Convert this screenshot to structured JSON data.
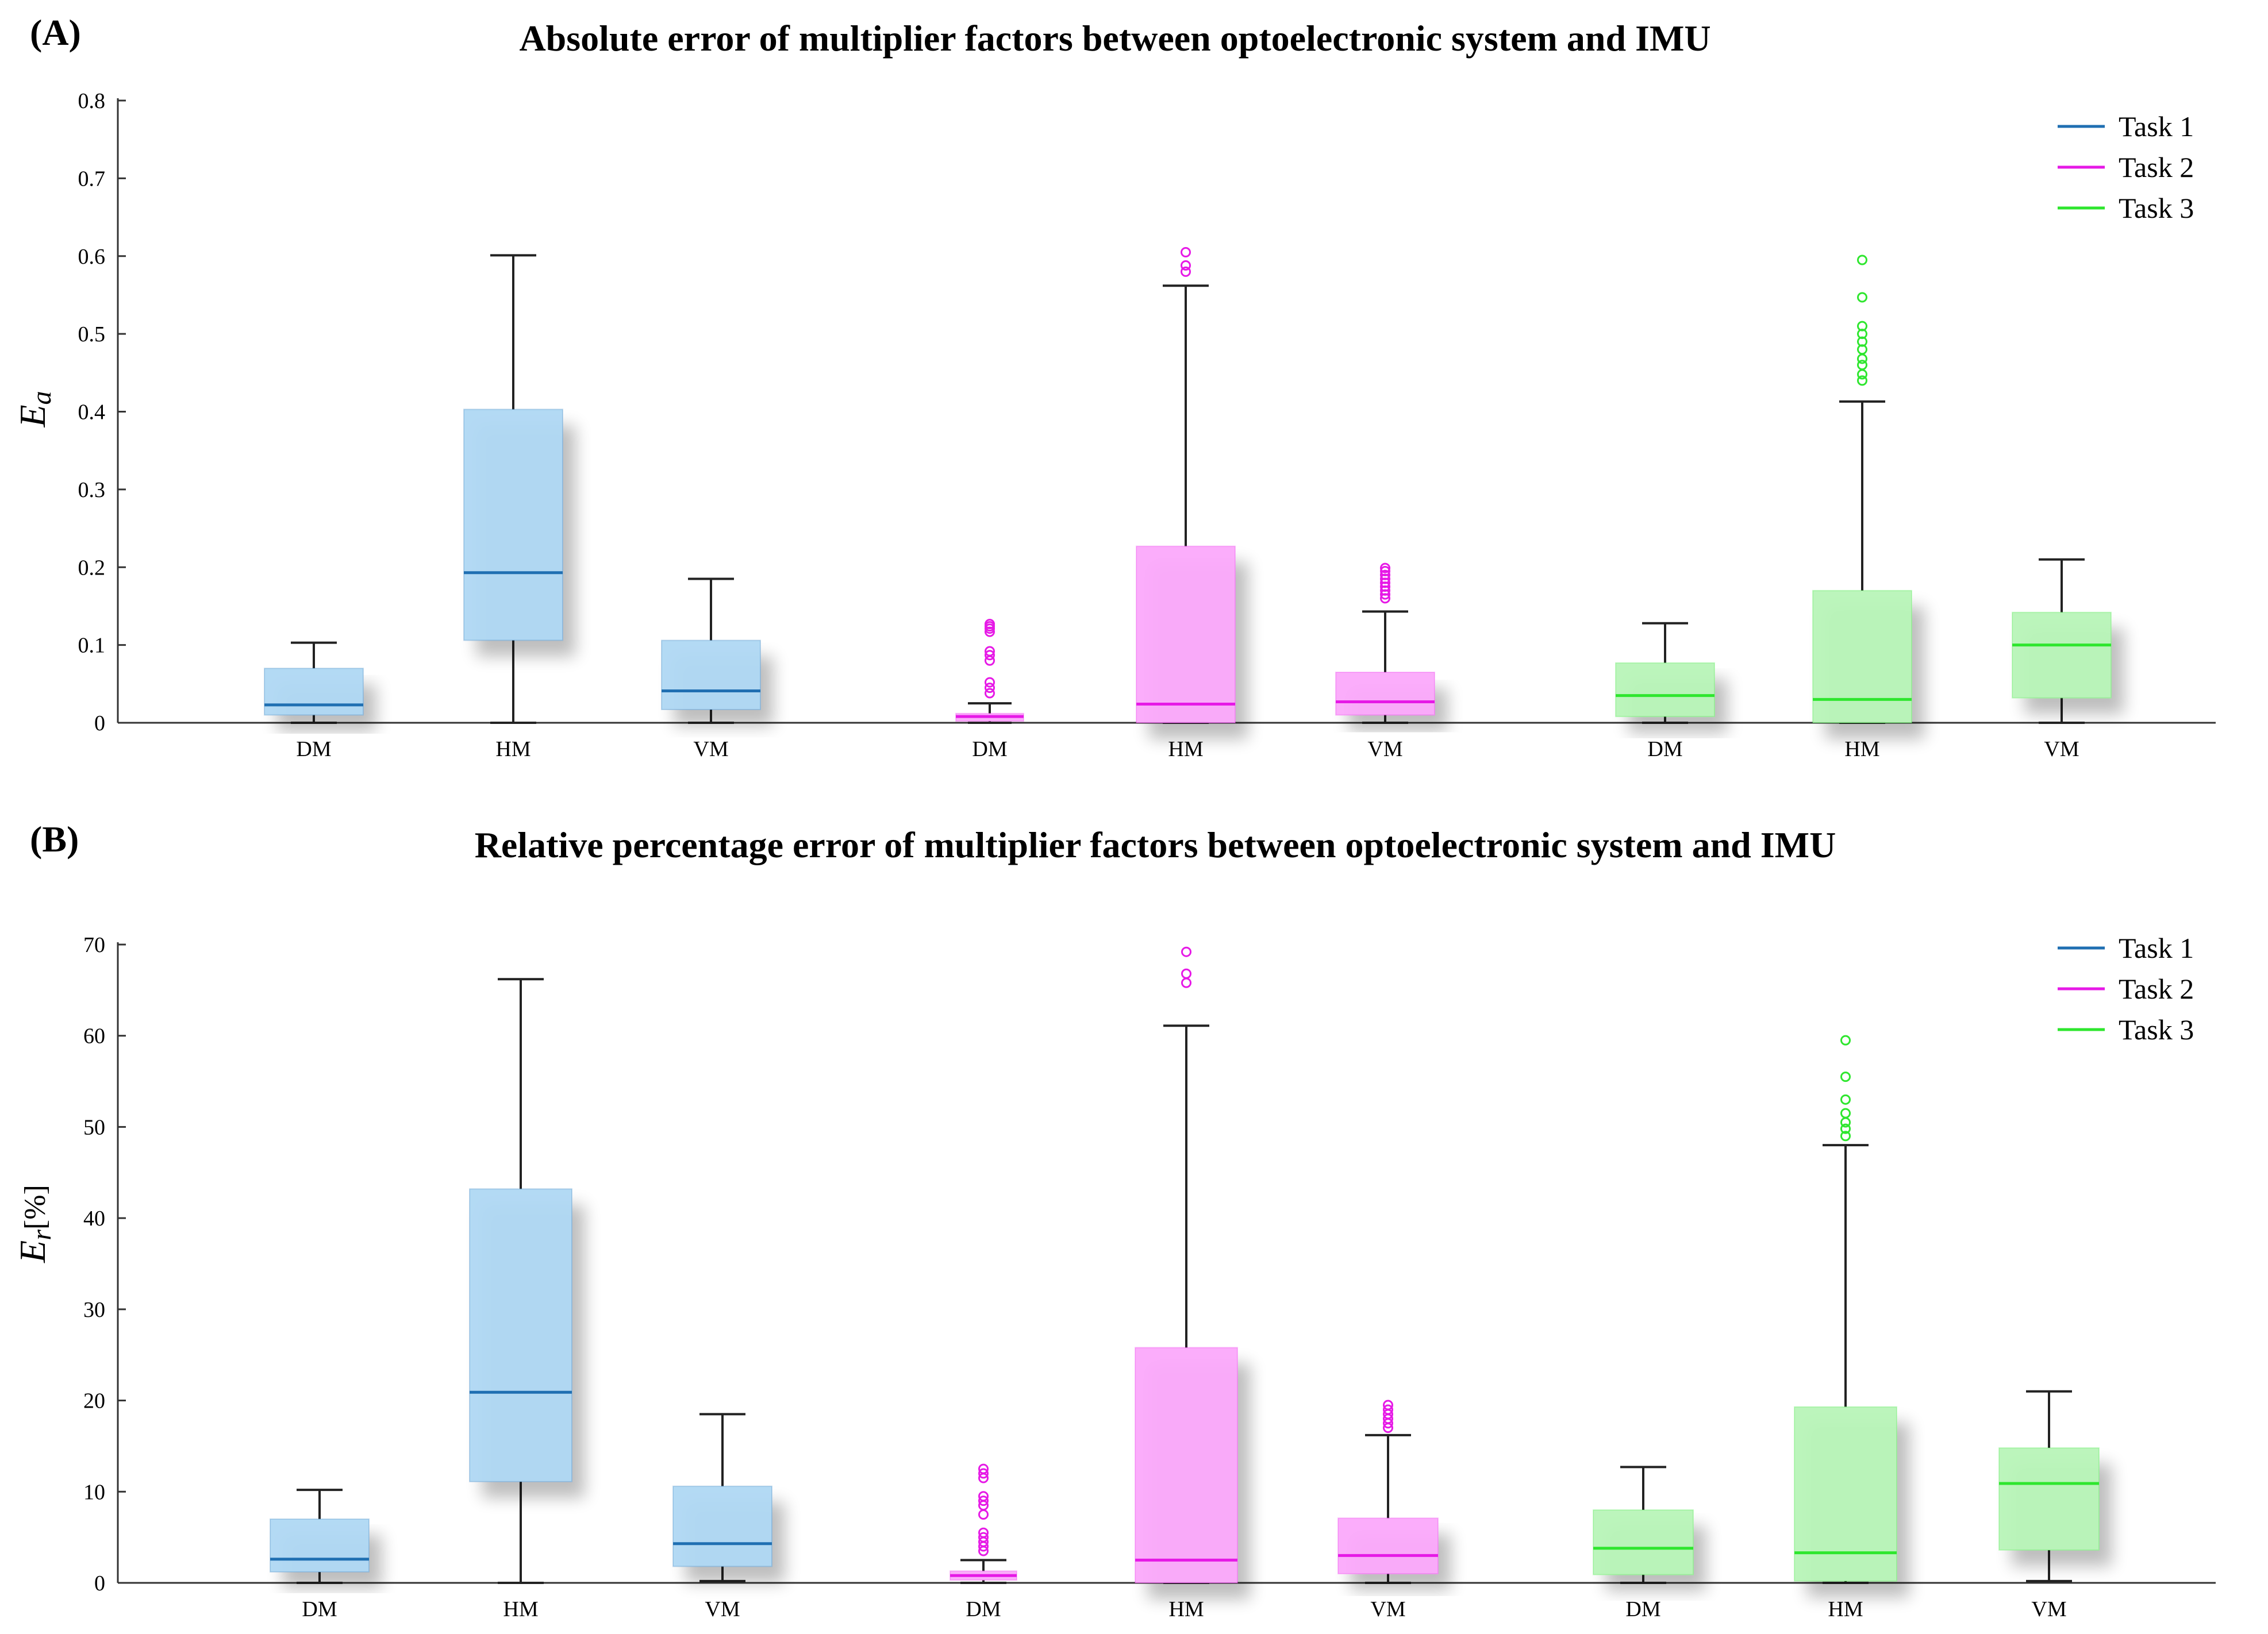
{
  "chart_data": [
    {
      "type": "box",
      "panel_label": "(A)",
      "title": "Absolute error of multiplier factors between optoelectronic system and IMU",
      "ylabel": {
        "main": "E",
        "sub": "a",
        "tail": ""
      },
      "xlabel": "",
      "ylim": [
        0,
        0.8
      ],
      "yticks": [
        0,
        0.1,
        0.2,
        0.3,
        0.4,
        0.5,
        0.6,
        0.7,
        0.8
      ],
      "ytick_labels": [
        "0",
        "0.1",
        "0.2",
        "0.3",
        "0.4",
        "0.5",
        "0.6",
        "0.7",
        "0.8"
      ],
      "legend": {
        "position": "top-right",
        "entries": [
          "Task 1",
          "Task 2",
          "Task 3"
        ]
      },
      "series": [
        {
          "name": "Task 1",
          "color": "#1f6fb2",
          "boxes": [
            {
              "category": "DM",
              "q1": 0.01,
              "median": 0.023,
              "q3": 0.07,
              "whisker_low": 0,
              "whisker_high": 0.103,
              "outliers": []
            },
            {
              "category": "HM",
              "q1": 0.106,
              "median": 0.193,
              "q3": 0.403,
              "whisker_low": 0,
              "whisker_high": 0.601,
              "outliers": []
            },
            {
              "category": "VM",
              "q1": 0.017,
              "median": 0.041,
              "q3": 0.106,
              "whisker_low": 0,
              "whisker_high": 0.185,
              "outliers": []
            }
          ]
        },
        {
          "name": "Task 2",
          "color": "#e619e6",
          "boxes": [
            {
              "category": "DM",
              "q1": 0.002,
              "median": 0.008,
              "q3": 0.012,
              "whisker_low": 0,
              "whisker_high": 0.025,
              "outliers": [
                0.038,
                0.045,
                0.052,
                0.08,
                0.087,
                0.092,
                0.117,
                0.121,
                0.124,
                0.127
              ]
            },
            {
              "category": "HM",
              "q1": 0,
              "median": 0.024,
              "q3": 0.227,
              "whisker_low": 0,
              "whisker_high": 0.562,
              "outliers": [
                0.58,
                0.588,
                0.605
              ]
            },
            {
              "category": "VM",
              "q1": 0.01,
              "median": 0.027,
              "q3": 0.065,
              "whisker_low": 0,
              "whisker_high": 0.143,
              "outliers": [
                0.16,
                0.165,
                0.17,
                0.175,
                0.18,
                0.185,
                0.19,
                0.195,
                0.199
              ]
            }
          ]
        },
        {
          "name": "Task 3",
          "color": "#2ee62e",
          "boxes": [
            {
              "category": "DM",
              "q1": 0.008,
              "median": 0.035,
              "q3": 0.077,
              "whisker_low": 0,
              "whisker_high": 0.128,
              "outliers": []
            },
            {
              "category": "HM",
              "q1": 0,
              "median": 0.03,
              "q3": 0.17,
              "whisker_low": 0,
              "whisker_high": 0.413,
              "outliers": [
                0.44,
                0.448,
                0.46,
                0.468,
                0.48,
                0.49,
                0.5,
                0.51,
                0.547,
                0.595
              ]
            },
            {
              "category": "VM",
              "q1": 0.032,
              "median": 0.1,
              "q3": 0.142,
              "whisker_low": 0,
              "whisker_high": 0.21,
              "outliers": []
            }
          ]
        }
      ]
    },
    {
      "type": "box",
      "panel_label": "(B)",
      "title": "Relative percentage error of multiplier factors between optoelectronic system and IMU",
      "ylabel": {
        "main": "E",
        "sub": "r",
        "tail": "[%]"
      },
      "xlabel": "",
      "ylim": [
        0,
        70
      ],
      "yticks": [
        0,
        10,
        20,
        30,
        40,
        50,
        60,
        70
      ],
      "ytick_labels": [
        "0",
        "10",
        "20",
        "30",
        "40",
        "50",
        "60",
        "70"
      ],
      "legend": {
        "position": "top-right",
        "entries": [
          "Task 1",
          "Task 2",
          "Task 3"
        ]
      },
      "series": [
        {
          "name": "Task 1",
          "color": "#1f6fb2",
          "boxes": [
            {
              "category": "DM",
              "q1": 1.2,
              "median": 2.6,
              "q3": 7.0,
              "whisker_low": 0,
              "whisker_high": 10.2,
              "outliers": []
            },
            {
              "category": "HM",
              "q1": 11.1,
              "median": 20.9,
              "q3": 43.2,
              "whisker_low": 0,
              "whisker_high": 66.2,
              "outliers": []
            },
            {
              "category": "VM",
              "q1": 1.8,
              "median": 4.3,
              "q3": 10.6,
              "whisker_low": 0.2,
              "whisker_high": 18.5,
              "outliers": []
            }
          ]
        },
        {
          "name": "Task 2",
          "color": "#e619e6",
          "boxes": [
            {
              "category": "DM",
              "q1": 0.3,
              "median": 0.8,
              "q3": 1.3,
              "whisker_low": 0,
              "whisker_high": 2.5,
              "outliers": [
                3.5,
                4.0,
                4.5,
                5.0,
                5.5,
                7.5,
                8.5,
                9.0,
                9.5,
                11.5,
                12.0,
                12.5
              ]
            },
            {
              "category": "HM",
              "q1": 0,
              "median": 2.5,
              "q3": 25.8,
              "whisker_low": 0,
              "whisker_high": 61.1,
              "outliers": [
                65.8,
                66.8,
                69.2
              ]
            },
            {
              "category": "VM",
              "q1": 1.0,
              "median": 3.0,
              "q3": 7.1,
              "whisker_low": 0,
              "whisker_high": 16.2,
              "outliers": [
                17.0,
                17.5,
                18.0,
                18.5,
                19.0,
                19.5
              ]
            }
          ]
        },
        {
          "name": "Task 3",
          "color": "#2ee62e",
          "boxes": [
            {
              "category": "DM",
              "q1": 0.9,
              "median": 3.8,
              "q3": 8.0,
              "whisker_low": 0,
              "whisker_high": 12.7,
              "outliers": []
            },
            {
              "category": "HM",
              "q1": 0.2,
              "median": 3.3,
              "q3": 19.3,
              "whisker_low": 0,
              "whisker_high": 48.0,
              "outliers": [
                49.0,
                49.8,
                50.5,
                51.5,
                53.0,
                55.5,
                59.5
              ]
            },
            {
              "category": "VM",
              "q1": 3.6,
              "median": 10.9,
              "q3": 14.8,
              "whisker_low": 0.2,
              "whisker_high": 21.0,
              "outliers": []
            }
          ]
        }
      ]
    }
  ]
}
